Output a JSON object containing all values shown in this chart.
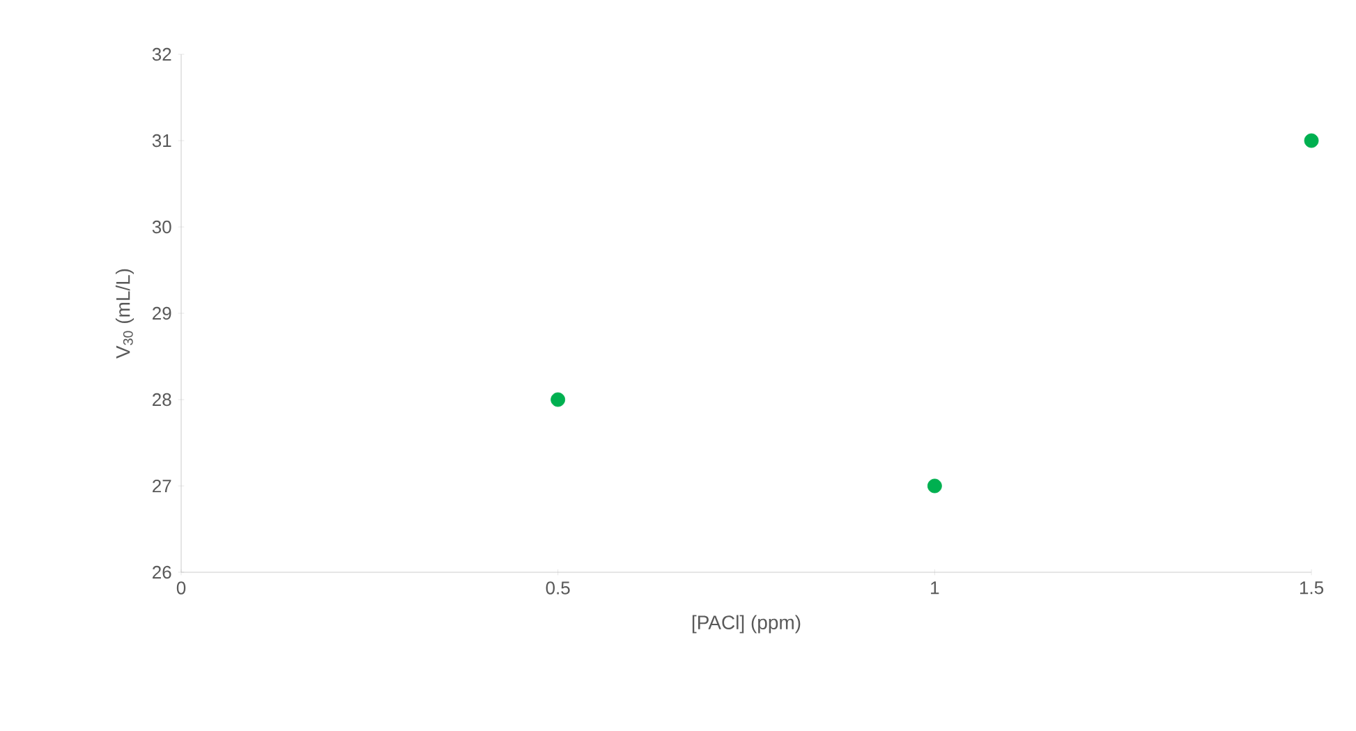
{
  "chart_data": {
    "type": "scatter",
    "xlabel": "[PACl] (ppm)",
    "ylabel": "V$_{30}$ (mL/L)",
    "x": [
      0.5,
      1,
      1.5
    ],
    "series": [
      {
        "color": "#00b050",
        "values": [
          28,
          27,
          31
        ]
      }
    ],
    "xlim": [
      0,
      1.5
    ],
    "ylim": [
      26,
      32
    ],
    "xticks": [
      0,
      0.5,
      1,
      1.5
    ],
    "yticks": [
      26,
      27,
      28,
      29,
      30,
      31,
      32
    ],
    "marker": "circle"
  }
}
